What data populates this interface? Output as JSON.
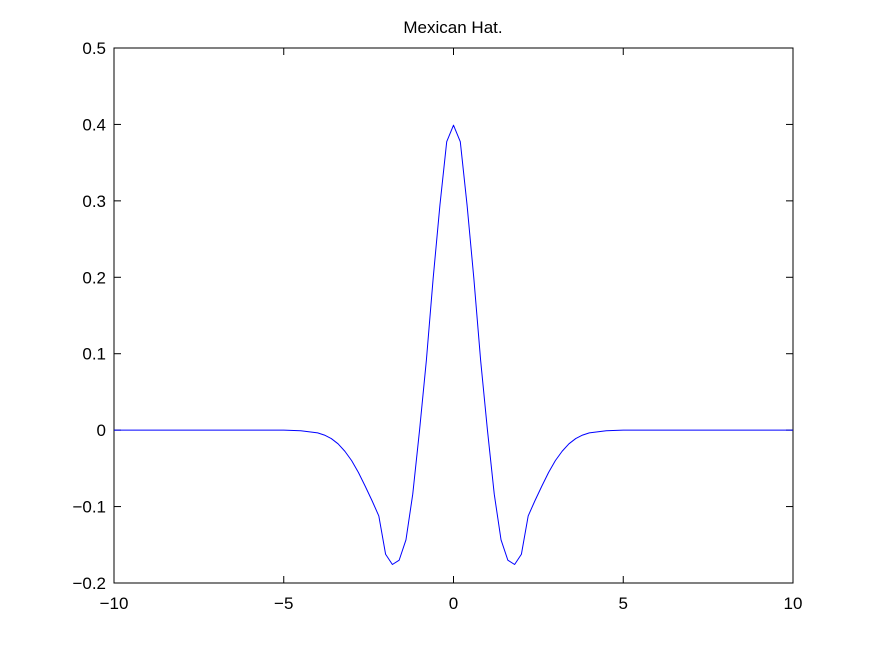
{
  "chart_data": {
    "type": "line",
    "title": "Mexican Hat.",
    "xlabel": "",
    "ylabel": "",
    "xlim": [
      -10,
      10
    ],
    "ylim": [
      -0.2,
      0.5
    ],
    "x_ticks": [
      -10,
      -5,
      0,
      5,
      10
    ],
    "x_tick_labels": [
      "−10",
      "−5",
      "0",
      "5",
      "10"
    ],
    "y_ticks": [
      -0.2,
      -0.1,
      0,
      0.1,
      0.2,
      0.3,
      0.4,
      0.5
    ],
    "y_tick_labels": [
      "−0.2",
      "−0.1",
      "0",
      "0.1",
      "0.2",
      "0.3",
      "0.4",
      "0.5"
    ],
    "grid": false,
    "legend": "none",
    "series": [
      {
        "color": "#0000ff",
        "x": [
          -10,
          -9,
          -8,
          -7,
          -6,
          -5,
          -4.5,
          -4,
          -3.8,
          -3.6,
          -3.4,
          -3.2,
          -3,
          -2.8,
          -2.6,
          -2.4,
          -2.2,
          -2,
          -1.8,
          -1.6,
          -1.4,
          -1.2,
          -1,
          -0.8,
          -0.6,
          -0.4,
          -0.2,
          0,
          0.2,
          0.4,
          0.6,
          0.8,
          1,
          1.2,
          1.4,
          1.6,
          1.8,
          2,
          2.2,
          2.4,
          2.6,
          2.8,
          3,
          3.2,
          3.4,
          3.6,
          3.8,
          4,
          4.5,
          5,
          6,
          7,
          8,
          9,
          10
        ],
        "y": [
          0,
          0,
          0,
          0,
          0,
          0,
          -0.0008,
          -0.0036,
          -0.0065,
          -0.011,
          -0.0179,
          -0.0276,
          -0.0399,
          -0.0554,
          -0.0734,
          -0.0922,
          -0.1122,
          -0.1624,
          -0.1758,
          -0.1701,
          -0.1435,
          -0.0837,
          0,
          0.0909,
          0.1982,
          0.2943,
          0.3774,
          0.399,
          0.3774,
          0.2943,
          0.1982,
          0.0909,
          0,
          -0.0837,
          -0.1435,
          -0.1701,
          -0.1758,
          -0.1624,
          -0.1122,
          -0.0922,
          -0.0734,
          -0.0554,
          -0.0399,
          -0.0276,
          -0.0179,
          -0.011,
          -0.0065,
          -0.0036,
          -0.0008,
          0,
          0,
          0,
          0,
          0,
          0
        ]
      }
    ]
  }
}
